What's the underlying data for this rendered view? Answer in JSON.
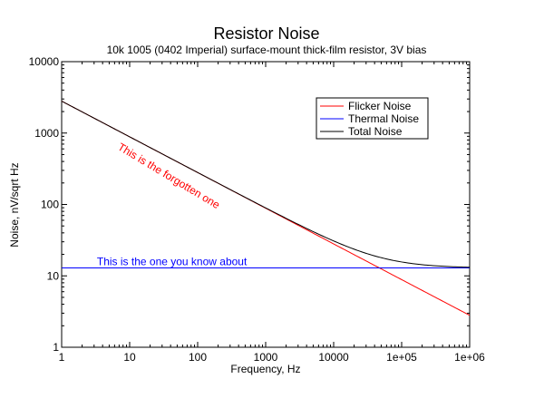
{
  "chart_data": {
    "type": "line",
    "title": "Resistor Noise",
    "subtitle": "10k 1005 (0402 Imperial)  surface-mount thick-film resistor, 3V bias",
    "xlabel": "Frequency, Hz",
    "ylabel": "Noise, nV/sqrt Hz",
    "x_scale": "log",
    "y_scale": "log",
    "xlim": [
      1,
      1000000
    ],
    "ylim": [
      1,
      10000
    ],
    "x_tick_values": [
      1,
      10,
      100,
      1000,
      10000,
      100000,
      1000000
    ],
    "x_tick_labels": [
      "1",
      "10",
      "100",
      "1000",
      "10000",
      "1e+05",
      "1e+06"
    ],
    "y_tick_values": [
      1,
      10,
      100,
      1000,
      10000
    ],
    "y_tick_labels": [
      "1",
      "10",
      "100",
      "1000",
      "10000"
    ],
    "grid": false,
    "legend_position": "top-right",
    "series": [
      {
        "name": "Flicker Noise",
        "color": "#ff0000",
        "model": "flicker",
        "x": [
          1,
          1000000
        ],
        "y": [
          2800,
          2.8
        ]
      },
      {
        "name": "Thermal Noise",
        "color": "#0000ff",
        "model": "thermal",
        "x": [
          1,
          1000000
        ],
        "y": [
          12.9,
          12.9
        ]
      },
      {
        "name": "Total Noise",
        "color": "#000000",
        "model": "total",
        "x": [
          1,
          1000000
        ],
        "y": [
          2800,
          13.2
        ]
      }
    ],
    "annotations": [
      {
        "text": "This is the forgotten one",
        "color": "#ff0000",
        "x": 6.5,
        "y": 600,
        "angle": 31
      },
      {
        "text": "This is the one you know about",
        "color": "#0000ff",
        "x": 3.3,
        "y": 14.2,
        "angle": 0
      }
    ]
  }
}
